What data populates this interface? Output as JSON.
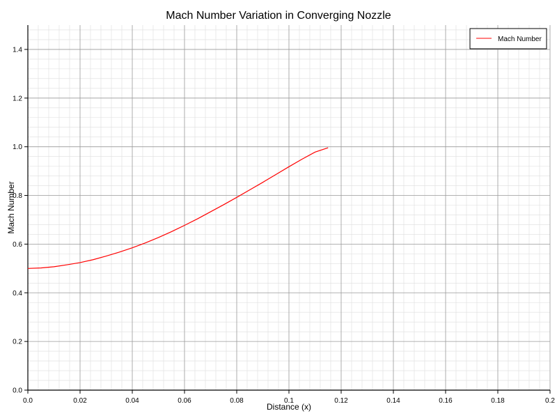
{
  "chart_data": {
    "type": "line",
    "title": "Mach Number Variation in Converging Nozzle",
    "xlabel": "Distance (x)",
    "ylabel": "Mach Number",
    "xlim": [
      0,
      0.2
    ],
    "ylim": [
      0,
      1.5
    ],
    "x_ticks": [
      "0.0",
      "0.02",
      "0.04",
      "0.06",
      "0.08",
      "0.1",
      "0.12",
      "0.14",
      "0.16",
      "0.18",
      "0.2"
    ],
    "y_ticks": [
      "0.0",
      "0.2",
      "0.4",
      "0.6",
      "0.8",
      "1.0",
      "1.2",
      "1.4"
    ],
    "grid": true,
    "minor_grid": true,
    "legend_position": "top-right",
    "series": [
      {
        "name": "Mach Number",
        "color": "#ff0000",
        "x": [
          0.0,
          0.005,
          0.01,
          0.015,
          0.02,
          0.025,
          0.03,
          0.035,
          0.04,
          0.045,
          0.05,
          0.055,
          0.06,
          0.065,
          0.07,
          0.075,
          0.08,
          0.085,
          0.09,
          0.095,
          0.1,
          0.105,
          0.11,
          0.115
        ],
        "y": [
          0.5,
          0.502,
          0.507,
          0.515,
          0.524,
          0.536,
          0.551,
          0.567,
          0.585,
          0.605,
          0.627,
          0.651,
          0.677,
          0.704,
          0.733,
          0.762,
          0.792,
          0.823,
          0.854,
          0.886,
          0.918,
          0.949,
          0.978,
          0.996
        ]
      }
    ]
  }
}
